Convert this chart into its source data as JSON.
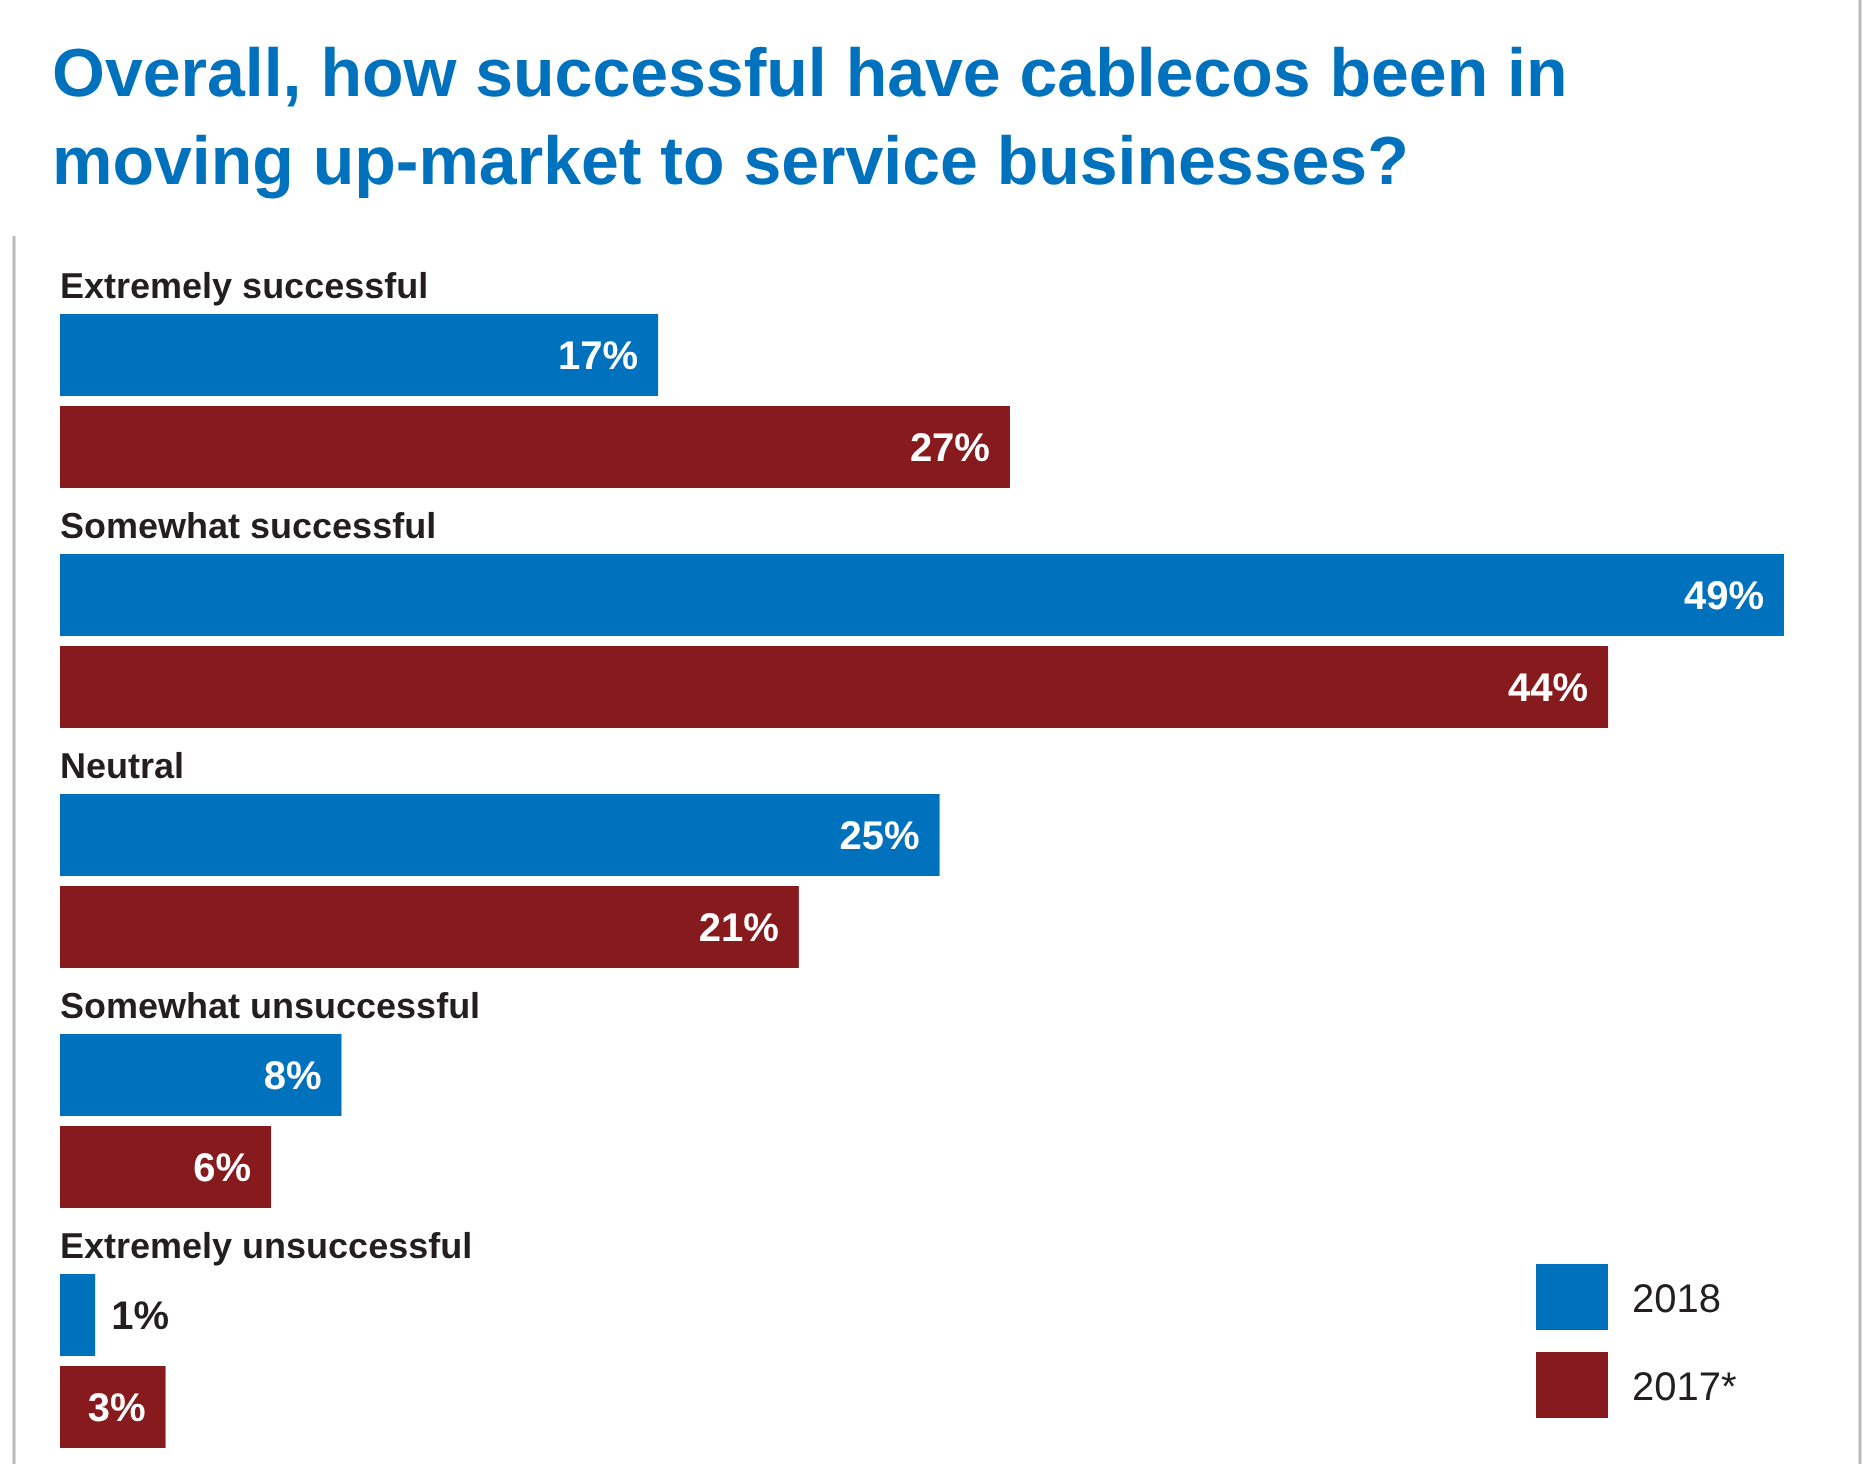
{
  "chart_data": {
    "type": "bar",
    "orientation": "horizontal",
    "title": "Overall, how successful have cablecos been in moving up-market to service businesses?",
    "categories": [
      "Extremely successful",
      "Somewhat successful",
      "Neutral",
      "Somewhat unsuccessful",
      "Extremely unsuccessful"
    ],
    "series": [
      {
        "name": "2018",
        "color": "#0071bc",
        "values": [
          17,
          49,
          25,
          8,
          1
        ],
        "value_labels": [
          "17%",
          "49%",
          "25%",
          "8%",
          "1%"
        ]
      },
      {
        "name": "2017*",
        "color": "#861a1c",
        "values": [
          27,
          44,
          21,
          6,
          3
        ],
        "value_labels": [
          "27%",
          "44%",
          "21%",
          "6%",
          "3%"
        ]
      }
    ],
    "legend": "bottom right"
  }
}
